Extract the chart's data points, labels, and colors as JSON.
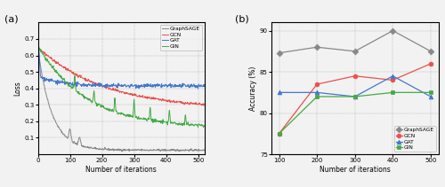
{
  "loss_xlim": [
    0,
    520
  ],
  "loss_ylim": [
    0,
    0.8
  ],
  "loss_xlabel": "Number of iterations",
  "loss_ylabel": "Loss",
  "loss_yticks": [
    0.1,
    0.2,
    0.3,
    0.4,
    0.5,
    0.6,
    0.7
  ],
  "loss_xticks": [
    0,
    100,
    200,
    300,
    400,
    500
  ],
  "acc_xlim": [
    80,
    520
  ],
  "acc_ylim": [
    75,
    91
  ],
  "acc_xlabel": "Number of iterations",
  "acc_ylabel": "Accuracy (%)",
  "acc_yticks": [
    75,
    80,
    85,
    90
  ],
  "acc_xticks": [
    100,
    200,
    300,
    400,
    500
  ],
  "acc_graphsage": [
    87.3,
    88.0,
    87.5,
    90.0,
    87.5
  ],
  "acc_gcn": [
    77.5,
    83.5,
    84.5,
    84.0,
    86.0
  ],
  "acc_gat": [
    82.5,
    82.5,
    82.0,
    84.5,
    82.0
  ],
  "acc_gin": [
    77.5,
    82.0,
    82.0,
    82.5,
    82.5
  ],
  "acc_x": [
    100,
    200,
    300,
    400,
    500
  ],
  "colors": {
    "graphsage": "#888888",
    "gcn": "#e8524a",
    "gat": "#4477cc",
    "gin": "#44aa44"
  },
  "panel_a": "(a)",
  "panel_b": "(b)",
  "bg_color": "#f2f2f2"
}
